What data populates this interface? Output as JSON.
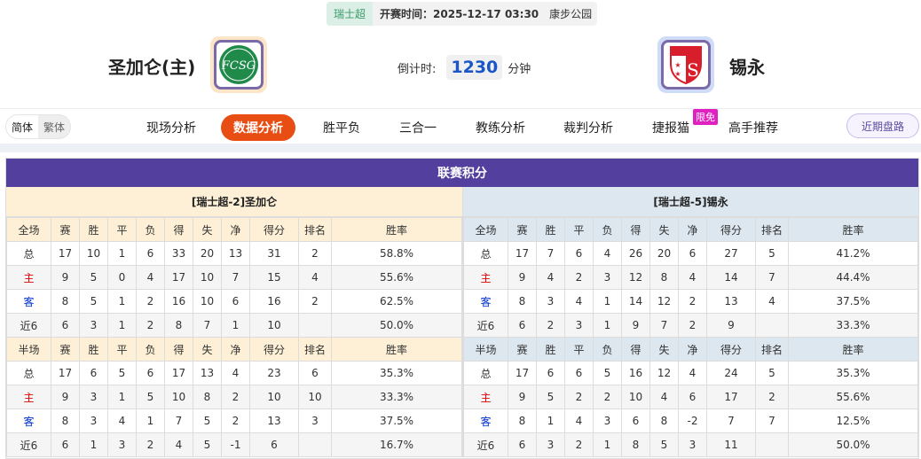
{
  "match": {
    "league": "瑞士超",
    "kickoff": "开赛时间：2025-12-17 03:30",
    "venue": "康步公园",
    "home": {
      "name": "圣加仑(主)",
      "logo_text": "FCSG"
    },
    "away": {
      "name": "锡永",
      "logo_text": "FC SION"
    },
    "countdown_label": "倒计时:",
    "countdown_value": "1230",
    "countdown_unit": "分钟"
  },
  "lang": {
    "simplified": "简体",
    "traditional": "繁体"
  },
  "nav": {
    "items": [
      "现场分析",
      "数据分析",
      "胜平负",
      "三合一",
      "教练分析",
      "裁判分析",
      "捷报猫",
      "高手推荐"
    ],
    "active": "数据分析",
    "badge": "限免",
    "recent": "近期盘路"
  },
  "colors": {
    "accent": "#e84e14",
    "title_bar": "#523f9e",
    "home_head": "#fdf0d6",
    "away_head": "#dde7ef"
  },
  "standings": {
    "title": "联赛积分",
    "columns_full": [
      "全场",
      "赛",
      "胜",
      "平",
      "负",
      "得",
      "失",
      "净",
      "得分",
      "排名",
      "胜率"
    ],
    "columns_half": [
      "半场",
      "赛",
      "胜",
      "平",
      "负",
      "得",
      "失",
      "净",
      "得分",
      "排名",
      "胜率"
    ],
    "home": {
      "team": "[瑞士超-2]圣加仑",
      "full": [
        [
          "总",
          "17",
          "10",
          "1",
          "6",
          "33",
          "20",
          "13",
          "31",
          "2",
          "58.8%"
        ],
        [
          "主",
          "9",
          "5",
          "0",
          "4",
          "17",
          "10",
          "7",
          "15",
          "4",
          "55.6%"
        ],
        [
          "客",
          "8",
          "5",
          "1",
          "2",
          "16",
          "10",
          "6",
          "16",
          "2",
          "62.5%"
        ],
        [
          "近6",
          "6",
          "3",
          "1",
          "2",
          "8",
          "7",
          "1",
          "10",
          "",
          "50.0%"
        ]
      ],
      "half": [
        [
          "总",
          "17",
          "6",
          "5",
          "6",
          "17",
          "13",
          "4",
          "23",
          "6",
          "35.3%"
        ],
        [
          "主",
          "9",
          "3",
          "1",
          "5",
          "10",
          "8",
          "2",
          "10",
          "10",
          "33.3%"
        ],
        [
          "客",
          "8",
          "3",
          "4",
          "1",
          "7",
          "5",
          "2",
          "13",
          "3",
          "37.5%"
        ],
        [
          "近6",
          "6",
          "1",
          "3",
          "2",
          "4",
          "5",
          "-1",
          "6",
          "",
          "16.7%"
        ]
      ]
    },
    "away": {
      "team": "[瑞士超-5]锡永",
      "full": [
        [
          "总",
          "17",
          "7",
          "6",
          "4",
          "26",
          "20",
          "6",
          "27",
          "5",
          "41.2%"
        ],
        [
          "主",
          "9",
          "4",
          "2",
          "3",
          "12",
          "8",
          "4",
          "14",
          "7",
          "44.4%"
        ],
        [
          "客",
          "8",
          "3",
          "4",
          "1",
          "14",
          "12",
          "2",
          "13",
          "4",
          "37.5%"
        ],
        [
          "近6",
          "6",
          "2",
          "3",
          "1",
          "9",
          "7",
          "2",
          "9",
          "",
          "33.3%"
        ]
      ],
      "half": [
        [
          "总",
          "17",
          "6",
          "6",
          "5",
          "16",
          "12",
          "4",
          "24",
          "5",
          "35.3%"
        ],
        [
          "主",
          "9",
          "5",
          "2",
          "2",
          "10",
          "4",
          "6",
          "17",
          "2",
          "55.6%"
        ],
        [
          "客",
          "8",
          "1",
          "4",
          "3",
          "6",
          "8",
          "-2",
          "7",
          "7",
          "12.5%"
        ],
        [
          "近6",
          "6",
          "3",
          "2",
          "1",
          "8",
          "5",
          "3",
          "11",
          "",
          "50.0%"
        ]
      ]
    }
  }
}
